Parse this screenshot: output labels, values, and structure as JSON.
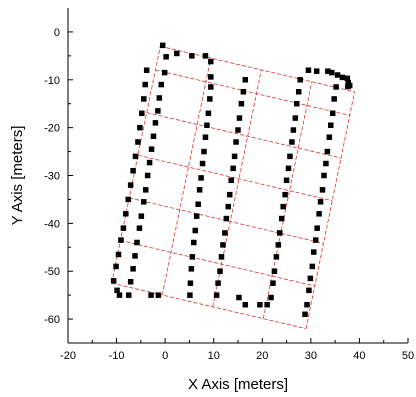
{
  "chart_data": {
    "type": "scatter",
    "title": "",
    "xlabel": "X Axis [meters]",
    "ylabel": "Y Axis [meters]",
    "xlim": [
      -20,
      50
    ],
    "ylim": [
      -65,
      5
    ],
    "x_ticks": [
      -20,
      -10,
      0,
      10,
      20,
      30,
      40,
      50
    ],
    "y_ticks": [
      0,
      -10,
      -20,
      -30,
      -40,
      -50,
      -60
    ],
    "tick_labels_x": [
      "-20",
      "-10",
      "0",
      "10",
      "20",
      "30",
      "40",
      "50"
    ],
    "tick_labels_y": [
      "0",
      "-10",
      "-20",
      "-30",
      "-40",
      "-50",
      "-60"
    ],
    "grid": false,
    "legend": "none",
    "colors": {
      "points": "#000000",
      "grid_lines": "#e03030",
      "axes": "#000000"
    },
    "series": [
      {
        "points": [
          [
            -0.5,
            -2.8
          ],
          [
            0.2,
            -5.2
          ],
          [
            -0.1,
            -8.5
          ],
          [
            -0.8,
            -11
          ],
          [
            -1.2,
            -13.8
          ],
          [
            -1.5,
            -16.5
          ],
          [
            -2,
            -19
          ],
          [
            -2.4,
            -21.8
          ],
          [
            -2.8,
            -24.5
          ],
          [
            -3.2,
            -27.3
          ],
          [
            -3.6,
            -30
          ],
          [
            -4,
            -33
          ],
          [
            -4.4,
            -35.5
          ],
          [
            -4.9,
            -38.5
          ],
          [
            -5.3,
            -41
          ],
          [
            -5.8,
            -44
          ],
          [
            -6.2,
            -46.8
          ],
          [
            -6.6,
            -49.5
          ],
          [
            -7.1,
            -52.2
          ],
          [
            -7.5,
            -55
          ],
          [
            -9.4,
            -55
          ],
          [
            -9.9,
            -54
          ],
          [
            -10.6,
            -52
          ],
          [
            -10.1,
            -49
          ],
          [
            -9.6,
            -46.5
          ],
          [
            -9.1,
            -43.5
          ],
          [
            -8.6,
            -41
          ],
          [
            -8.1,
            -38
          ],
          [
            -7.6,
            -35
          ],
          [
            -7.1,
            -32
          ],
          [
            -6.6,
            -29
          ],
          [
            -6.1,
            -26
          ],
          [
            -5.6,
            -23
          ],
          [
            -5.2,
            -20
          ],
          [
            -4.8,
            -17
          ],
          [
            -4.4,
            -14
          ],
          [
            -4.1,
            -11
          ],
          [
            -3.8,
            -8
          ],
          [
            -2.9,
            -55
          ],
          [
            -1.4,
            -55
          ],
          [
            2.4,
            -4.5
          ],
          [
            5.5,
            -5
          ],
          [
            8.3,
            -5
          ],
          [
            9.4,
            -6.2
          ],
          [
            9.4,
            -9.4
          ],
          [
            9.4,
            -11.5
          ],
          [
            9.2,
            -14
          ],
          [
            8.9,
            -17
          ],
          [
            8.6,
            -19.5
          ],
          [
            8.3,
            -22
          ],
          [
            8,
            -25
          ],
          [
            7.7,
            -27.5
          ],
          [
            7.4,
            -30.5
          ],
          [
            7.1,
            -33
          ],
          [
            6.8,
            -36
          ],
          [
            6.5,
            -38.5
          ],
          [
            6.2,
            -41.5
          ],
          [
            5.9,
            -44
          ],
          [
            5.6,
            -47
          ],
          [
            5.4,
            -49.5
          ],
          [
            5.2,
            -52.5
          ],
          [
            5.1,
            -55
          ],
          [
            10.6,
            -55
          ],
          [
            10.9,
            -52.5
          ],
          [
            11.3,
            -50
          ],
          [
            11.6,
            -47
          ],
          [
            11.9,
            -44.5
          ],
          [
            12.3,
            -42
          ],
          [
            12.6,
            -39
          ],
          [
            13,
            -36.5
          ],
          [
            13.3,
            -34
          ],
          [
            13.6,
            -31
          ],
          [
            14,
            -28.5
          ],
          [
            14.3,
            -26
          ],
          [
            14.6,
            -23
          ],
          [
            15,
            -20.5
          ],
          [
            15.3,
            -18
          ],
          [
            15.7,
            -15
          ],
          [
            16.1,
            -12.5
          ],
          [
            16.5,
            -10
          ],
          [
            15.2,
            -55.5
          ],
          [
            16.5,
            -57
          ],
          [
            19.5,
            -57
          ],
          [
            21,
            -57
          ],
          [
            21.8,
            -55.5
          ],
          [
            22.2,
            -52.5
          ],
          [
            22.5,
            -50
          ],
          [
            22.9,
            -47
          ],
          [
            23.3,
            -44.5
          ],
          [
            23.6,
            -42
          ],
          [
            24,
            -39
          ],
          [
            24.3,
            -36.5
          ],
          [
            24.7,
            -34
          ],
          [
            25,
            -31
          ],
          [
            25.4,
            -28.5
          ],
          [
            25.7,
            -26
          ],
          [
            26.1,
            -23
          ],
          [
            26.4,
            -20.5
          ],
          [
            26.8,
            -18
          ],
          [
            27.1,
            -15
          ],
          [
            27.5,
            -12.5
          ],
          [
            27.8,
            -10
          ],
          [
            28.8,
            -59
          ],
          [
            29.2,
            -57
          ],
          [
            29.6,
            -54
          ],
          [
            29.9,
            -51.5
          ],
          [
            30.3,
            -49
          ],
          [
            30.6,
            -46
          ],
          [
            31,
            -43.5
          ],
          [
            31.3,
            -41
          ],
          [
            31.7,
            -38
          ],
          [
            32,
            -35.5
          ],
          [
            32.4,
            -33
          ],
          [
            32.7,
            -30
          ],
          [
            33.1,
            -27.5
          ],
          [
            33.4,
            -25
          ],
          [
            33.8,
            -22
          ],
          [
            34.1,
            -19.5
          ],
          [
            34.5,
            -17
          ],
          [
            34.8,
            -14
          ],
          [
            35.2,
            -11.5
          ],
          [
            35.5,
            -9
          ],
          [
            29.5,
            -8
          ],
          [
            31.2,
            -8.2
          ],
          [
            33.5,
            -8.2
          ],
          [
            34.3,
            -8.5
          ],
          [
            36.5,
            -9.5
          ],
          [
            37.5,
            -9.7
          ],
          [
            37.7,
            -10.6
          ],
          [
            38,
            -11.2
          ],
          [
            37.6,
            -11.4
          ]
        ]
      }
    ]
  }
}
